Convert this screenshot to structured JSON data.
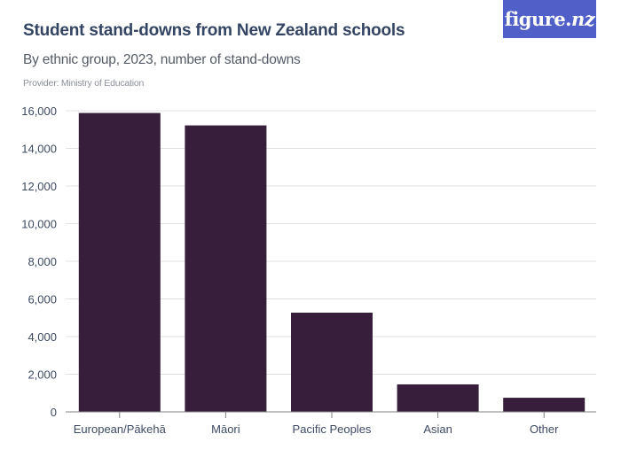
{
  "header": {
    "title": "Student stand-downs from New Zealand schools",
    "subtitle": "By ethnic group, 2023, number of stand-downs",
    "provider": "Provider: Ministry of Education"
  },
  "logo": {
    "text": "figure.",
    "suffix": "nz"
  },
  "colors": {
    "bar": "#371f3b",
    "title": "#344563",
    "logo_bg": "#5060c8",
    "grid": "#e0e0e0",
    "axis": "#808080"
  },
  "chart_data": {
    "type": "bar",
    "title": "Student stand-downs from New Zealand schools",
    "subtitle": "By ethnic group, 2023, number of stand-downs",
    "xlabel": "",
    "ylabel": "",
    "categories": [
      "European/Pākehā",
      "Māori",
      "Pacific Peoples",
      "Asian",
      "Other"
    ],
    "values": [
      15880,
      15220,
      5270,
      1460,
      750
    ],
    "ylim": [
      0,
      16000
    ],
    "yticks": [
      0,
      2000,
      4000,
      6000,
      8000,
      10000,
      12000,
      14000,
      16000
    ],
    "ytick_labels": [
      "0",
      "2,000",
      "4,000",
      "6,000",
      "8,000",
      "10,000",
      "12,000",
      "14,000",
      "16,000"
    ],
    "grid": true,
    "legend": "none"
  }
}
